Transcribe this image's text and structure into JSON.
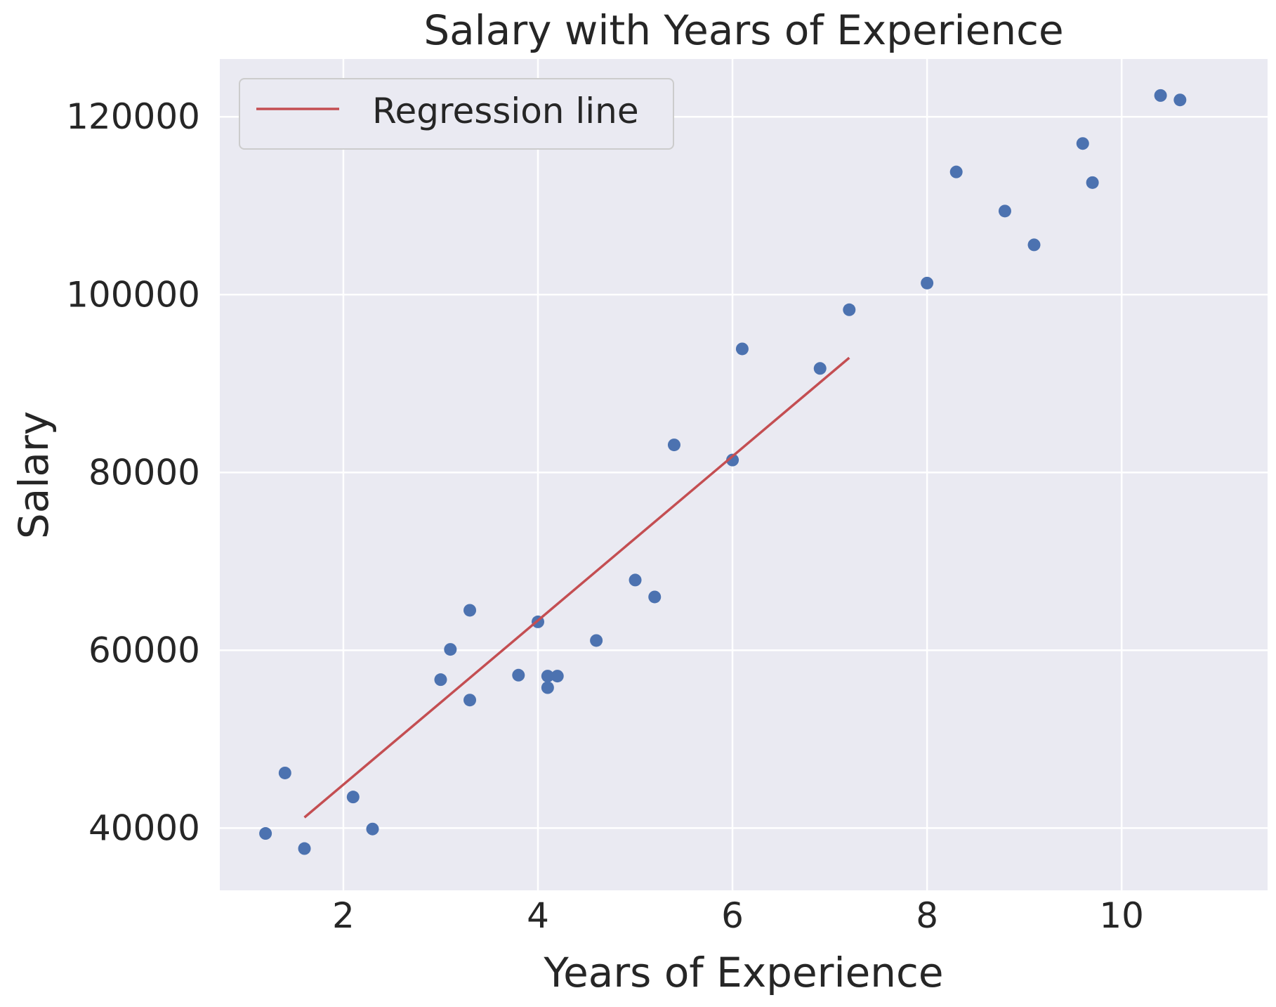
{
  "chart_data": {
    "type": "scatter",
    "title": "Salary with Years of Experience",
    "xlabel": "Years of Experience",
    "ylabel": "Salary",
    "xlim": [
      0.73,
      11.5
    ],
    "ylim": [
      33000,
      126500
    ],
    "xticks": [
      2,
      4,
      6,
      8,
      10
    ],
    "yticks": [
      40000,
      60000,
      80000,
      100000,
      120000
    ],
    "grid": true,
    "legend_position": "top-left",
    "colors": {
      "points": "#4c72b0",
      "line": "#c44e52",
      "background": "#eaeaf2",
      "grid": "#ffffff"
    },
    "series": [
      {
        "type": "scatter",
        "points": [
          [
            1.2,
            39400
          ],
          [
            1.4,
            46200
          ],
          [
            1.6,
            37700
          ],
          [
            2.1,
            43500
          ],
          [
            2.3,
            39900
          ],
          [
            3.0,
            56700
          ],
          [
            3.1,
            60100
          ],
          [
            3.3,
            54400
          ],
          [
            3.3,
            64500
          ],
          [
            3.8,
            57200
          ],
          [
            4.0,
            63200
          ],
          [
            4.1,
            55800
          ],
          [
            4.1,
            57100
          ],
          [
            4.2,
            57100
          ],
          [
            4.6,
            61100
          ],
          [
            5.0,
            67900
          ],
          [
            5.2,
            66000
          ],
          [
            5.4,
            83100
          ],
          [
            6.0,
            81400
          ],
          [
            6.1,
            93900
          ],
          [
            6.9,
            91700
          ],
          [
            7.2,
            98300
          ],
          [
            8.0,
            101300
          ],
          [
            8.3,
            113800
          ],
          [
            8.8,
            109400
          ],
          [
            9.1,
            105600
          ],
          [
            9.6,
            117000
          ],
          [
            9.7,
            112600
          ],
          [
            10.4,
            122400
          ],
          [
            10.6,
            121900
          ]
        ]
      },
      {
        "type": "line",
        "name": "Regression line",
        "points": [
          [
            1.6,
            41200
          ],
          [
            7.2,
            92900
          ]
        ]
      }
    ]
  }
}
